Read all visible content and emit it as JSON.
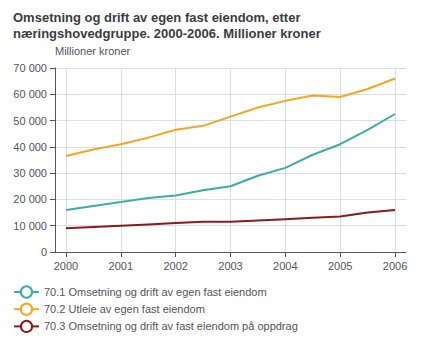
{
  "chart_data": {
    "type": "line",
    "title": "Omsetning og drift av egen fast eiendom, etter næringshovedgruppe. 2000-2006. Millioner kroner",
    "ylabel": "Millioner kroner",
    "x": [
      2000,
      2000.5,
      2001,
      2001.5,
      2002,
      2002.5,
      2003,
      2003.5,
      2004,
      2004.5,
      2005,
      2005.5,
      2006
    ],
    "series": [
      {
        "name": "70.1 Omsetning og drift av egen fast eiendom",
        "color": "#3aafa9",
        "values": [
          16000,
          17500,
          19000,
          20500,
          21500,
          23500,
          25000,
          29000,
          32000,
          37000,
          41000,
          46500,
          52500
        ]
      },
      {
        "name": "70.2 Utleie av egen fast eiendom",
        "color": "#f5a623",
        "values": [
          36500,
          39000,
          41000,
          43500,
          46500,
          48000,
          51500,
          55000,
          57500,
          59500,
          59000,
          62000,
          66000
        ]
      },
      {
        "name": "70.3 Omsetning og drift av fast eiendom på oppdrag",
        "color": "#8b1a1a",
        "values": [
          9000,
          9500,
          10000,
          10500,
          11000,
          11500,
          11500,
          12000,
          12500,
          13000,
          13500,
          15000,
          16000
        ]
      }
    ],
    "xlim": [
      1999.8,
      2006.2
    ],
    "xticks": [
      2000,
      2001,
      2002,
      2003,
      2004,
      2005,
      2006
    ],
    "ylim": [
      0,
      70000
    ],
    "yticks": [
      0,
      {
        "value": 10000,
        "label": "10 000"
      },
      {
        "value": 20000,
        "label": "20 000"
      },
      {
        "value": 30000,
        "label": "30 000"
      },
      {
        "value": 40000,
        "label": "40 000"
      },
      {
        "value": 50000,
        "label": "50 000"
      },
      {
        "value": 60000,
        "label": "60 000"
      },
      {
        "value": 70000,
        "label": "70 000"
      }
    ],
    "grid": true,
    "legend": "lower left"
  }
}
